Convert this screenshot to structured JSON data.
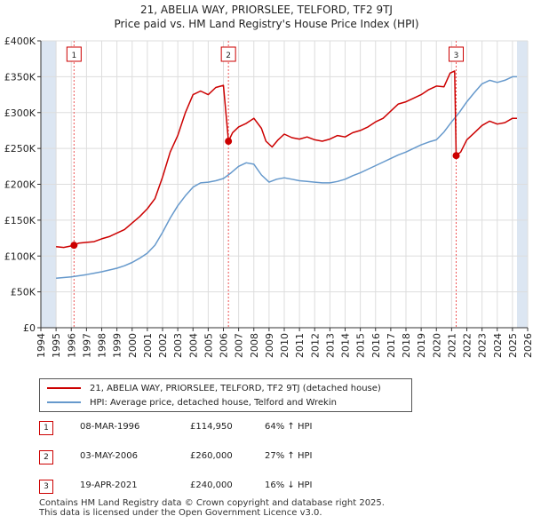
{
  "title_line1": "21, ABELIA WAY, PRIORSLEE, TELFORD, TF2 9TJ",
  "title_line2": "Price paid vs. HM Land Registry's House Price Index (HPI)",
  "colors": {
    "property": "#cc0000",
    "hpi": "#6699cc",
    "shade": "#dce6f2",
    "grid": "#dddddd",
    "marker_line": "#ee5555"
  },
  "chart_data": {
    "type": "line",
    "xlim": [
      1994,
      2026
    ],
    "ylim": [
      0,
      400000
    ],
    "x_ticks": [
      "1994",
      "1995",
      "1996",
      "1997",
      "1998",
      "1999",
      "2000",
      "2001",
      "2002",
      "2003",
      "2004",
      "2005",
      "2006",
      "2007",
      "2008",
      "2009",
      "2010",
      "2011",
      "2012",
      "2013",
      "2014",
      "2015",
      "2016",
      "2017",
      "2018",
      "2019",
      "2020",
      "2021",
      "2022",
      "2023",
      "2024",
      "2025",
      "2026"
    ],
    "y_ticks": [
      {
        "value": 0,
        "label": "£0"
      },
      {
        "value": 50000,
        "label": "£50K"
      },
      {
        "value": 100000,
        "label": "£100K"
      },
      {
        "value": 150000,
        "label": "£150K"
      },
      {
        "value": 200000,
        "label": "£200K"
      },
      {
        "value": 250000,
        "label": "£250K"
      },
      {
        "value": 300000,
        "label": "£300K"
      },
      {
        "value": 350000,
        "label": "£350K"
      },
      {
        "value": 400000,
        "label": "£400K"
      }
    ],
    "shaded_ranges": [
      [
        1994,
        1995
      ],
      [
        2025.3,
        2026
      ]
    ],
    "series": [
      {
        "name": "21, ABELIA WAY, PRIORSLEE, TELFORD, TF2 9TJ (detached house)",
        "x": [
          1995.0,
          1995.5,
          1996.0,
          1996.18,
          1996.5,
          1997.0,
          1997.5,
          1998.0,
          1998.5,
          1999.0,
          1999.5,
          2000.0,
          2000.5,
          2001.0,
          2001.5,
          2002.0,
          2002.5,
          2003.0,
          2003.5,
          2004.0,
          2004.5,
          2005.0,
          2005.5,
          2006.0,
          2006.33,
          2006.6,
          2007.0,
          2007.5,
          2008.0,
          2008.5,
          2008.8,
          2009.2,
          2009.6,
          2010.0,
          2010.5,
          2011.0,
          2011.5,
          2012.0,
          2012.5,
          2013.0,
          2013.5,
          2014.0,
          2014.5,
          2015.0,
          2015.5,
          2016.0,
          2016.5,
          2017.0,
          2017.5,
          2018.0,
          2018.5,
          2019.0,
          2019.5,
          2020.0,
          2020.5,
          2020.9,
          2021.2,
          2021.3,
          2021.6,
          2022.0,
          2022.5,
          2023.0,
          2023.5,
          2024.0,
          2024.5,
          2025.0,
          2025.3
        ],
        "y": [
          113000,
          112000,
          114000,
          114950,
          118000,
          119000,
          120000,
          124000,
          127000,
          132000,
          137000,
          146000,
          155000,
          166000,
          180000,
          210000,
          245000,
          268000,
          300000,
          325000,
          330000,
          325000,
          335000,
          338000,
          260000,
          272000,
          280000,
          285000,
          292000,
          278000,
          260000,
          252000,
          262000,
          270000,
          265000,
          263000,
          266000,
          262000,
          260000,
          263000,
          268000,
          266000,
          272000,
          275000,
          280000,
          287000,
          292000,
          302000,
          312000,
          315000,
          320000,
          325000,
          332000,
          337000,
          336000,
          355000,
          358000,
          240000,
          245000,
          262000,
          272000,
          282000,
          288000,
          284000,
          286000,
          292000,
          292000
        ]
      },
      {
        "name": "HPI: Average price, detached house, Telford and Wrekin",
        "x": [
          1995.0,
          1995.5,
          1996.0,
          1996.5,
          1997.0,
          1997.5,
          1998.0,
          1998.5,
          1999.0,
          1999.5,
          2000.0,
          2000.5,
          2001.0,
          2001.5,
          2002.0,
          2002.5,
          2003.0,
          2003.5,
          2004.0,
          2004.5,
          2005.0,
          2005.5,
          2006.0,
          2006.5,
          2007.0,
          2007.5,
          2008.0,
          2008.5,
          2009.0,
          2009.5,
          2010.0,
          2010.5,
          2011.0,
          2011.5,
          2012.0,
          2012.5,
          2013.0,
          2013.5,
          2014.0,
          2014.5,
          2015.0,
          2015.5,
          2016.0,
          2016.5,
          2017.0,
          2017.5,
          2018.0,
          2018.5,
          2019.0,
          2019.5,
          2020.0,
          2020.5,
          2021.0,
          2021.5,
          2022.0,
          2022.5,
          2023.0,
          2023.5,
          2024.0,
          2024.5,
          2025.0,
          2025.3
        ],
        "y": [
          69000,
          70000,
          71000,
          72500,
          74000,
          76000,
          78000,
          80500,
          83000,
          86500,
          91000,
          97000,
          104000,
          115000,
          133000,
          153000,
          170000,
          184000,
          196000,
          202000,
          203000,
          205000,
          208000,
          216000,
          225000,
          230000,
          228000,
          213000,
          203000,
          207000,
          209000,
          207000,
          205000,
          204000,
          203000,
          202000,
          202000,
          204000,
          207000,
          212000,
          216000,
          221000,
          226000,
          231000,
          236000,
          241000,
          245000,
          250000,
          255000,
          259000,
          262000,
          273000,
          287000,
          300000,
          315000,
          328000,
          340000,
          345000,
          342000,
          345000,
          350000,
          350000
        ]
      }
    ],
    "transactions": [
      {
        "num": "1",
        "x": 1996.18,
        "price": 114950,
        "date": "08-MAR-1996",
        "price_label": "£114,950",
        "hpi_label": "64% ↑ HPI"
      },
      {
        "num": "2",
        "x": 2006.33,
        "price": 260000,
        "date": "03-MAY-2006",
        "price_label": "£260,000",
        "hpi_label": "27% ↑ HPI"
      },
      {
        "num": "3",
        "x": 2021.3,
        "price": 240000,
        "date": "19-APR-2021",
        "price_label": "£240,000",
        "hpi_label": "16% ↓ HPI"
      }
    ]
  },
  "legend": {
    "property": "21, ABELIA WAY, PRIORSLEE, TELFORD, TF2 9TJ (detached house)",
    "hpi": "HPI: Average price, detached house, Telford and Wrekin"
  },
  "footer": {
    "line1": "Contains HM Land Registry data © Crown copyright and database right 2025.",
    "line2": "This data is licensed under the Open Government Licence v3.0."
  }
}
